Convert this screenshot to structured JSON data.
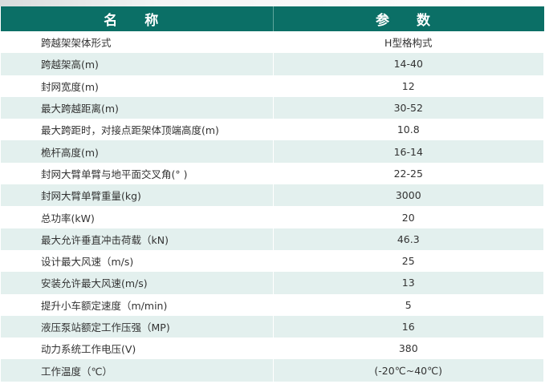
{
  "table": {
    "headers": [
      "名 称",
      "参 数"
    ],
    "rows": [
      {
        "name": "跨越架架体形式",
        "value": "H型格构式"
      },
      {
        "name": "跨越架高(m)",
        "value": "14-40"
      },
      {
        "name": "封网宽度(m)",
        "value": "12"
      },
      {
        "name": "最大跨越距离(m)",
        "value": "30-52"
      },
      {
        "name": "最大跨距时，对接点距架体顶端高度(m)",
        "value": "10.8"
      },
      {
        "name": "桅杆高度(m)",
        "value": "16-14"
      },
      {
        "name": "封网大臂单臂与地平面交叉角(° )",
        "value": "22-25"
      },
      {
        "name": "封网大臂单臂重量(kg)",
        "value": "3000"
      },
      {
        "name": "总功率(kW)",
        "value": "20"
      },
      {
        "name": "最大允许垂直冲击荷载（kN)",
        "value": "46.3"
      },
      {
        "name": "设计最大风速（m/s)",
        "value": "25"
      },
      {
        "name": "安装允许最大风速(m/s)",
        "value": "13"
      },
      {
        "name": "提升小车额定速度（m/min)",
        "value": "5"
      },
      {
        "name": "液压泵站额定工作压强（MP)",
        "value": "16"
      },
      {
        "name": "动力系统工作电压(V)",
        "value": "380"
      },
      {
        "name": "工作温度（℃）",
        "value": "(-20℃~40℃)"
      }
    ]
  },
  "colors": {
    "header": "#0b6f66",
    "alt_row": "#e3f0ee"
  }
}
